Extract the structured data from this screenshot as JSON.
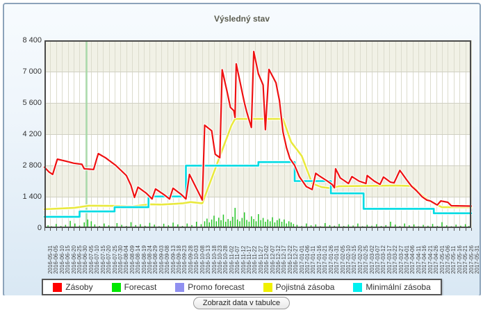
{
  "panel": {
    "title": "Výsledný stav"
  },
  "button": {
    "label": "Zobrazit data v tabulce"
  },
  "colors": {
    "panel_border": "#8ca3ba",
    "plot_frame": "#4a4a4a",
    "band_beige": "#f1f1e6",
    "band_white": "#ffffff",
    "grid_vertical": "#dcdccd",
    "grid_horizontal": "#cfcfc2",
    "today_line": "#9fd8a2",
    "series_zasoby": "#ee1111",
    "series_forecast": "#27c427",
    "series_promo": "#9090f0",
    "series_pojistna": "#e9e93e",
    "series_minimalni": "#00dbe3",
    "legend_zasoby": "#ff0000",
    "legend_forecast": "#00e800",
    "legend_promo": "#9090f0",
    "legend_pojistna": "#f0f000",
    "legend_minimalni": "#00f0f0"
  },
  "chart_data": {
    "type": "line",
    "title": "Výsledný stav",
    "grid": true,
    "legend_position": "bottom",
    "y_axis": {
      "min": 0,
      "max": 8400,
      "tick_step": 1400,
      "tick_labels": [
        "8 400",
        "7 000",
        "5 600",
        "4 200",
        "2 800",
        "1 400",
        "0"
      ]
    },
    "x_axis": {
      "span_days": 365,
      "label_every_days": 5
    },
    "today_marker_day": 36,
    "x_labels": [
      "2016-05-31",
      "2016-06-05",
      "2016-06-10",
      "2016-06-15",
      "2016-06-20",
      "2016-06-25",
      "2016-06-30",
      "2016-07-05",
      "2016-07-10",
      "2016-07-15",
      "2016-07-20",
      "2016-07-25",
      "2016-07-30",
      "2016-08-04",
      "2016-08-09",
      "2016-08-14",
      "2016-08-19",
      "2016-08-24",
      "2016-08-29",
      "2016-09-03",
      "2016-09-08",
      "2016-09-13",
      "2016-09-18",
      "2016-09-23",
      "2016-09-28",
      "2016-10-03",
      "2016-10-08",
      "2016-10-13",
      "2016-10-18",
      "2016-10-23",
      "2016-10-28",
      "2016-11-02",
      "2016-11-07",
      "2016-11-12",
      "2016-11-17",
      "2016-11-22",
      "2016-11-27",
      "2016-12-02",
      "2016-12-07",
      "2016-12-12",
      "2016-12-17",
      "2016-12-22",
      "2016-12-27",
      "2017-01-01",
      "2017-01-06",
      "2017-01-11",
      "2017-01-16",
      "2017-01-21",
      "2017-01-26",
      "2017-01-31",
      "2017-02-05",
      "2017-02-10",
      "2017-02-15",
      "2017-02-20",
      "2017-02-25",
      "2017-03-02",
      "2017-03-07",
      "2017-03-12",
      "2017-03-17",
      "2017-03-22",
      "2017-03-27",
      "2017-04-01",
      "2017-04-06",
      "2017-04-11",
      "2017-04-16",
      "2017-04-21",
      "2017-04-26",
      "2017-05-01",
      "2017-05-06",
      "2017-05-11",
      "2017-05-16",
      "2017-05-21",
      "2017-05-26",
      "2017-05-31"
    ],
    "legend": [
      {
        "label": "Zásoby",
        "color_key": "legend_zasoby"
      },
      {
        "label": "Forecast",
        "color_key": "legend_forecast"
      },
      {
        "label": "Promo forecast",
        "color_key": "legend_promo"
      },
      {
        "label": "Pojistná zásoba",
        "color_key": "legend_pojistna"
      },
      {
        "label": "Minimální zásoba",
        "color_key": "legend_minimalni"
      }
    ],
    "series": {
      "zasoby": [
        [
          0,
          2720
        ],
        [
          4,
          2500
        ],
        [
          7,
          2400
        ],
        [
          11,
          3080
        ],
        [
          19,
          2980
        ],
        [
          25,
          2900
        ],
        [
          32,
          2850
        ],
        [
          34,
          2650
        ],
        [
          42,
          2620
        ],
        [
          46,
          3330
        ],
        [
          52,
          3150
        ],
        [
          61,
          2800
        ],
        [
          70,
          2350
        ],
        [
          74,
          1900
        ],
        [
          77,
          1370
        ],
        [
          80,
          1830
        ],
        [
          87,
          1560
        ],
        [
          92,
          1300
        ],
        [
          95,
          1750
        ],
        [
          102,
          1500
        ],
        [
          107,
          1300
        ],
        [
          110,
          1780
        ],
        [
          117,
          1500
        ],
        [
          121,
          1300
        ],
        [
          124,
          2400
        ],
        [
          135,
          1250
        ],
        [
          137,
          4600
        ],
        [
          143,
          4350
        ],
        [
          146,
          3300
        ],
        [
          150,
          3150
        ],
        [
          152,
          7080
        ],
        [
          156,
          6150
        ],
        [
          159,
          5400
        ],
        [
          162,
          5250
        ],
        [
          163,
          4950
        ],
        [
          164,
          7350
        ],
        [
          171,
          5600
        ],
        [
          173,
          5200
        ],
        [
          177,
          4500
        ],
        [
          179,
          7900
        ],
        [
          183,
          6900
        ],
        [
          187,
          6400
        ],
        [
          189,
          4400
        ],
        [
          192,
          7100
        ],
        [
          198,
          6500
        ],
        [
          201,
          5700
        ],
        [
          204,
          4300
        ],
        [
          207,
          3600
        ],
        [
          210,
          3100
        ],
        [
          214,
          2800
        ],
        [
          218,
          2300
        ],
        [
          224,
          1850
        ],
        [
          229,
          1720
        ],
        [
          232,
          2450
        ],
        [
          236,
          2300
        ],
        [
          242,
          2100
        ],
        [
          246,
          1950
        ],
        [
          248,
          1800
        ],
        [
          249,
          2650
        ],
        [
          253,
          2240
        ],
        [
          257,
          2100
        ],
        [
          260,
          1990
        ],
        [
          263,
          2300
        ],
        [
          269,
          2100
        ],
        [
          275,
          1990
        ],
        [
          276,
          2350
        ],
        [
          282,
          2100
        ],
        [
          287,
          1950
        ],
        [
          290,
          2280
        ],
        [
          296,
          2050
        ],
        [
          299,
          2020
        ],
        [
          304,
          2580
        ],
        [
          310,
          2140
        ],
        [
          314,
          1870
        ],
        [
          318,
          1680
        ],
        [
          323,
          1400
        ],
        [
          327,
          1250
        ],
        [
          330,
          1210
        ],
        [
          336,
          1030
        ],
        [
          339,
          1210
        ],
        [
          345,
          1150
        ],
        [
          348,
          995
        ],
        [
          365,
          980
        ]
      ],
      "pojistna": [
        [
          0,
          840
        ],
        [
          25,
          900
        ],
        [
          38,
          1000
        ],
        [
          60,
          990
        ],
        [
          75,
          960
        ],
        [
          90,
          1060
        ],
        [
          100,
          1050
        ],
        [
          118,
          1100
        ],
        [
          125,
          1160
        ],
        [
          135,
          1100
        ],
        [
          140,
          1800
        ],
        [
          150,
          3200
        ],
        [
          160,
          4600
        ],
        [
          163,
          4880
        ],
        [
          204,
          4880
        ],
        [
          211,
          3850
        ],
        [
          220,
          3230
        ],
        [
          229,
          1990
        ],
        [
          237,
          1830
        ],
        [
          245,
          1780
        ],
        [
          252,
          1870
        ],
        [
          300,
          1900
        ],
        [
          315,
          1880
        ],
        [
          323,
          1460
        ],
        [
          331,
          1150
        ],
        [
          340,
          930
        ],
        [
          365,
          930
        ]
      ],
      "minimalni": [
        [
          0,
          500
        ],
        [
          30,
          500
        ],
        [
          30,
          740
        ],
        [
          60,
          740
        ],
        [
          60,
          930
        ],
        [
          89,
          930
        ],
        [
          89,
          1410
        ],
        [
          121,
          1410
        ],
        [
          121,
          2790
        ],
        [
          183,
          2790
        ],
        [
          183,
          2950
        ],
        [
          214,
          2950
        ],
        [
          214,
          2100
        ],
        [
          245,
          2100
        ],
        [
          245,
          1550
        ],
        [
          273,
          1550
        ],
        [
          273,
          860
        ],
        [
          333,
          860
        ],
        [
          333,
          660
        ],
        [
          365,
          660
        ]
      ],
      "promo_forecast": [],
      "forecast_bars": [
        [
          3,
          120
        ],
        [
          6,
          80
        ],
        [
          10,
          180
        ],
        [
          14,
          90
        ],
        [
          18,
          140
        ],
        [
          22,
          320
        ],
        [
          26,
          200
        ],
        [
          30,
          110
        ],
        [
          34,
          250
        ],
        [
          37,
          380
        ],
        [
          40,
          300
        ],
        [
          43,
          160
        ],
        [
          47,
          90
        ],
        [
          51,
          200
        ],
        [
          55,
          120
        ],
        [
          58,
          70
        ],
        [
          62,
          220
        ],
        [
          66,
          140
        ],
        [
          70,
          90
        ],
        [
          74,
          260
        ],
        [
          78,
          130
        ],
        [
          82,
          170
        ],
        [
          86,
          100
        ],
        [
          90,
          230
        ],
        [
          94,
          150
        ],
        [
          98,
          80
        ],
        [
          102,
          190
        ],
        [
          106,
          120
        ],
        [
          110,
          240
        ],
        [
          114,
          160
        ],
        [
          118,
          90
        ],
        [
          122,
          200
        ],
        [
          126,
          130
        ],
        [
          130,
          280
        ],
        [
          134,
          170
        ],
        [
          137,
          300
        ],
        [
          139,
          420
        ],
        [
          141,
          250
        ],
        [
          143,
          380
        ],
        [
          145,
          550
        ],
        [
          147,
          300
        ],
        [
          149,
          460
        ],
        [
          151,
          350
        ],
        [
          153,
          600
        ],
        [
          155,
          280
        ],
        [
          157,
          400
        ],
        [
          159,
          320
        ],
        [
          161,
          500
        ],
        [
          163,
          900
        ],
        [
          165,
          380
        ],
        [
          167,
          300
        ],
        [
          169,
          450
        ],
        [
          171,
          700
        ],
        [
          173,
          360
        ],
        [
          175,
          280
        ],
        [
          177,
          520
        ],
        [
          179,
          400
        ],
        [
          181,
          300
        ],
        [
          183,
          620
        ],
        [
          185,
          350
        ],
        [
          187,
          450
        ],
        [
          189,
          280
        ],
        [
          191,
          380
        ],
        [
          193,
          300
        ],
        [
          195,
          480
        ],
        [
          197,
          250
        ],
        [
          199,
          350
        ],
        [
          201,
          420
        ],
        [
          203,
          280
        ],
        [
          205,
          380
        ],
        [
          207,
          200
        ],
        [
          209,
          300
        ],
        [
          211,
          250
        ],
        [
          213,
          180
        ],
        [
          216,
          140
        ],
        [
          220,
          90
        ],
        [
          224,
          200
        ],
        [
          228,
          120
        ],
        [
          232,
          160
        ],
        [
          236,
          80
        ],
        [
          240,
          220
        ],
        [
          244,
          130
        ],
        [
          248,
          100
        ],
        [
          252,
          180
        ],
        [
          256,
          90
        ],
        [
          260,
          150
        ],
        [
          264,
          110
        ],
        [
          268,
          200
        ],
        [
          272,
          80
        ],
        [
          276,
          140
        ],
        [
          280,
          100
        ],
        [
          284,
          170
        ],
        [
          288,
          90
        ],
        [
          292,
          130
        ],
        [
          296,
          280
        ],
        [
          300,
          150
        ],
        [
          304,
          90
        ],
        [
          308,
          200
        ],
        [
          312,
          120
        ],
        [
          316,
          160
        ],
        [
          320,
          80
        ],
        [
          324,
          140
        ],
        [
          328,
          100
        ],
        [
          332,
          180
        ],
        [
          336,
          90
        ],
        [
          340,
          260
        ],
        [
          344,
          120
        ],
        [
          348,
          80
        ],
        [
          352,
          150
        ],
        [
          356,
          100
        ],
        [
          360,
          170
        ],
        [
          363,
          90
        ]
      ]
    }
  }
}
